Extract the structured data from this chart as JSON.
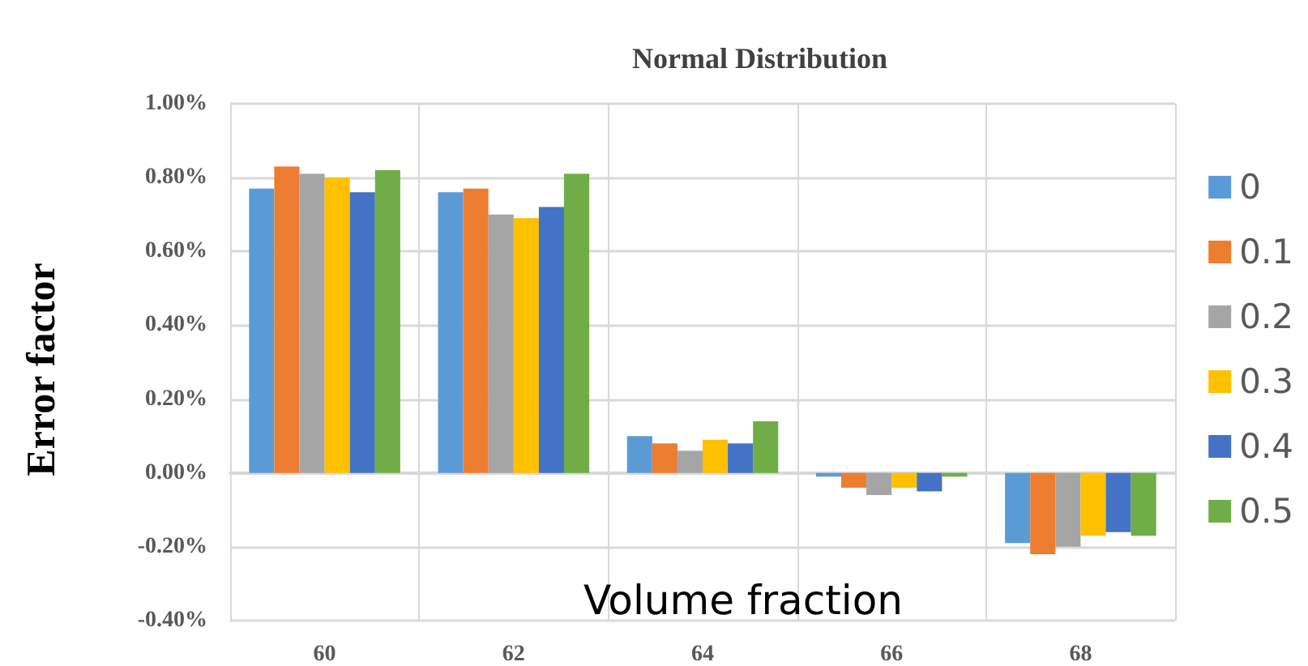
{
  "chart_data": {
    "type": "bar",
    "title": "Normal Distribution",
    "xlabel": "Volume fraction",
    "ylabel": "Error factor",
    "categories": [
      "60",
      "62",
      "64",
      "66",
      "68"
    ],
    "series": [
      {
        "name": "0",
        "color": "#5b9bd5",
        "values": [
          0.77,
          0.76,
          0.1,
          -0.01,
          -0.19
        ]
      },
      {
        "name": "0.1",
        "color": "#ed7d31",
        "values": [
          0.83,
          0.77,
          0.08,
          -0.04,
          -0.22
        ]
      },
      {
        "name": "0.2",
        "color": "#a5a5a5",
        "values": [
          0.81,
          0.7,
          0.06,
          -0.06,
          -0.2
        ]
      },
      {
        "name": "0.3",
        "color": "#ffc000",
        "values": [
          0.8,
          0.69,
          0.09,
          -0.04,
          -0.17
        ]
      },
      {
        "name": "0.4",
        "color": "#4472c4",
        "values": [
          0.76,
          0.72,
          0.08,
          -0.05,
          -0.16
        ]
      },
      {
        "name": "0.5",
        "color": "#70ad47",
        "values": [
          0.82,
          0.81,
          0.14,
          -0.01,
          -0.17
        ]
      }
    ],
    "ylim": [
      -0.4,
      1.0
    ],
    "yticks": [
      {
        "value": -0.4,
        "label": "-0.40%"
      },
      {
        "value": -0.2,
        "label": "-0.20%"
      },
      {
        "value": 0,
        "label": "0.00%"
      },
      {
        "value": 0.2,
        "label": "0.20%"
      },
      {
        "value": 0.4,
        "label": "0.40%"
      },
      {
        "value": 0.6,
        "label": "0.60%"
      },
      {
        "value": 0.8,
        "label": "0.80%"
      },
      {
        "value": 1.0,
        "label": "1.00%"
      }
    ],
    "grid": true,
    "legend": "right"
  }
}
